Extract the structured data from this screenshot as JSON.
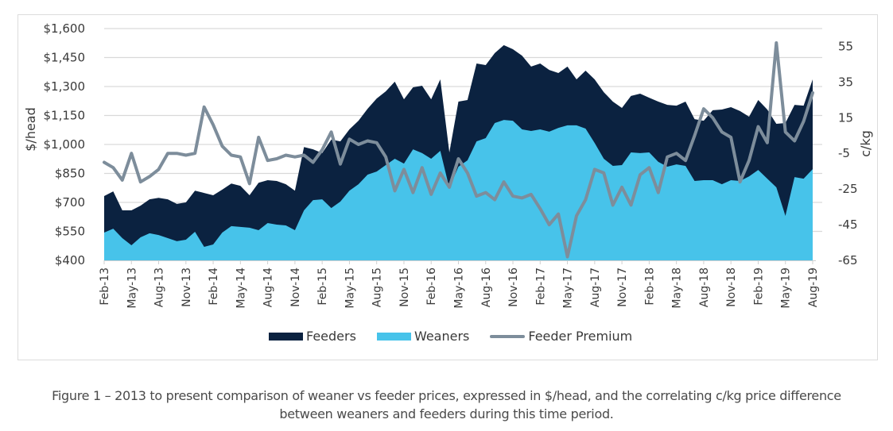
{
  "chart_data": {
    "type": "area",
    "title": "",
    "x": [
      "Feb-13",
      "Mar-13",
      "Apr-13",
      "May-13",
      "Jun-13",
      "Jul-13",
      "Aug-13",
      "Sep-13",
      "Oct-13",
      "Nov-13",
      "Dec-13",
      "Jan-14",
      "Feb-14",
      "Mar-14",
      "Apr-14",
      "May-14",
      "Jun-14",
      "Jul-14",
      "Aug-14",
      "Sep-14",
      "Oct-14",
      "Nov-14",
      "Dec-14",
      "Jan-15",
      "Feb-15",
      "Mar-15",
      "Apr-15",
      "May-15",
      "Jun-15",
      "Jul-15",
      "Aug-15",
      "Sep-15",
      "Oct-15",
      "Nov-15",
      "Dec-15",
      "Jan-16",
      "Feb-16",
      "Mar-16",
      "Apr-16",
      "May-16",
      "Jun-16",
      "Jul-16",
      "Aug-16",
      "Sep-16",
      "Oct-16",
      "Nov-16",
      "Dec-16",
      "Jan-17",
      "Feb-17",
      "Mar-17",
      "Apr-17",
      "May-17",
      "Jun-17",
      "Jul-17",
      "Aug-17",
      "Sep-17",
      "Oct-17",
      "Nov-17",
      "Dec-17",
      "Jan-18",
      "Feb-18",
      "Mar-18",
      "Apr-18",
      "May-18",
      "Jun-18",
      "Jul-18",
      "Aug-18",
      "Sep-18",
      "Oct-18",
      "Nov-18",
      "Dec-18",
      "Jan-19",
      "Feb-19",
      "Mar-19",
      "Apr-19",
      "May-19",
      "Jun-19",
      "Jul-19",
      "Aug-19"
    ],
    "x_tick_labels": [
      "Feb-13",
      "May-13",
      "Aug-13",
      "Nov-13",
      "Feb-14",
      "May-14",
      "Aug-14",
      "Nov-14",
      "Feb-15",
      "May-15",
      "Aug-15",
      "Nov-15",
      "Feb-16",
      "May-16",
      "Aug-16",
      "Nov-16",
      "Feb-17",
      "May-17",
      "Aug-17",
      "Nov-17",
      "Feb-18",
      "May-18",
      "Aug-18",
      "Nov-18",
      "Feb-19",
      "May-19",
      "Aug-19"
    ],
    "series": [
      {
        "name": "Feeders",
        "axis": "left",
        "kind": "area",
        "color": "#0b2240",
        "values": [
          733,
          757,
          659,
          659,
          683,
          716,
          724,
          716,
          692,
          700,
          761,
          749,
          737,
          766,
          798,
          786,
          737,
          802,
          815,
          811,
          794,
          761,
          987,
          975,
          955,
          1025,
          1016,
          1078,
          1123,
          1185,
          1238,
          1275,
          1325,
          1234,
          1296,
          1304,
          1234,
          1337,
          959,
          1222,
          1230,
          1419,
          1411,
          1473,
          1514,
          1493,
          1460,
          1403,
          1419,
          1386,
          1370,
          1403,
          1337,
          1382,
          1337,
          1271,
          1222,
          1189,
          1251,
          1263,
          1242,
          1222,
          1205,
          1201,
          1222,
          1131,
          1123,
          1177,
          1181,
          1193,
          1173,
          1144,
          1230,
          1181,
          1107,
          1111,
          1205,
          1201,
          1337
        ]
      },
      {
        "name": "Weaners",
        "axis": "left",
        "kind": "area",
        "color": "#47c3ea",
        "values": [
          544,
          564,
          515,
          478,
          519,
          540,
          531,
          515,
          499,
          507,
          548,
          470,
          482,
          544,
          577,
          573,
          569,
          556,
          593,
          585,
          581,
          556,
          659,
          712,
          716,
          671,
          704,
          761,
          794,
          844,
          860,
          893,
          926,
          901,
          975,
          955,
          926,
          967,
          774,
          885,
          918,
          1016,
          1033,
          1111,
          1127,
          1123,
          1078,
          1070,
          1078,
          1066,
          1086,
          1099,
          1099,
          1082,
          1008,
          926,
          889,
          893,
          959,
          955,
          959,
          910,
          885,
          897,
          889,
          811,
          815,
          815,
          794,
          815,
          811,
          835,
          868,
          823,
          778,
          630,
          831,
          823,
          872
        ]
      },
      {
        "name": "Feeder Premium",
        "axis": "right",
        "kind": "line",
        "color": "#7d8d9b",
        "values": [
          -10,
          -13,
          -20,
          -5,
          -21,
          -18,
          -14,
          -5,
          -5,
          -6,
          -5,
          21,
          11,
          -1,
          -6,
          -7,
          -22,
          4,
          -9,
          -8,
          -6,
          -7,
          -6,
          -10,
          -3,
          7,
          -11,
          3,
          0,
          2,
          1,
          -7,
          -26,
          -14,
          -27,
          -13,
          -28,
          -16,
          -24,
          -8,
          -16,
          -29,
          -27,
          -31,
          -21,
          -29,
          -30,
          -28,
          -36,
          -45,
          -39,
          -63,
          -40,
          -31,
          -14,
          -16,
          -34,
          -24,
          -34,
          -17,
          -13,
          -27,
          -7,
          -5,
          -9,
          5,
          20,
          15,
          7,
          4,
          -21,
          -9,
          10,
          1,
          57,
          7,
          2,
          13,
          29
        ]
      }
    ],
    "ylabel": "$/head",
    "y2label": "c/kg",
    "ylim": [
      400,
      1600
    ],
    "y_ticks": [
      "$400",
      "$550",
      "$700",
      "$850",
      "$1,000",
      "$1,150",
      "$1,300",
      "$1,450",
      "$1,600"
    ],
    "y_tick_values": [
      400,
      550,
      700,
      850,
      1000,
      1150,
      1300,
      1450,
      1600
    ],
    "y2lim": [
      -65,
      65
    ],
    "y2_ticks": [
      "-65",
      "-45",
      "-25",
      "-5",
      "15",
      "35",
      "55"
    ],
    "y2_tick_values": [
      -65,
      -45,
      -25,
      -5,
      15,
      35,
      55
    ],
    "grid": true,
    "legend_position": "bottom-center"
  },
  "legend": [
    {
      "label": "Feeders",
      "color": "#0b2240",
      "kind": "area"
    },
    {
      "label": "Weaners",
      "color": "#47c3ea",
      "kind": "area"
    },
    {
      "label": "Feeder Premium",
      "color": "#7d8d9b",
      "kind": "line"
    }
  ],
  "caption": {
    "line1": "Figure 1 – 2013 to present comparison of weaner vs feeder prices, expressed in $/head, and the correlating c/kg price difference",
    "line2": "between weaners and feeders during this time period."
  }
}
